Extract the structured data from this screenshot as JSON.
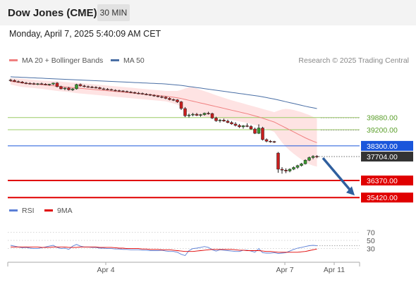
{
  "header": {
    "title": "Dow Jones (CME)",
    "timeframe": "30 MIN",
    "datetime": "Monday, April 7, 2025 5:40:09 AM CET"
  },
  "legend": {
    "ma20": "MA 20 + Bollinger Bands",
    "ma50": "MA 50",
    "rsi": "RSI",
    "ma9": "9MA"
  },
  "credit": "Research © 2025 Trading Central",
  "colors": {
    "ma20": "#f08080",
    "ma50": "#4a6fa5",
    "band": "#fddada",
    "resistance": "#9ccc65",
    "pivot": "#1a56db",
    "support": "#e00000",
    "rsi": "#5b7fd6",
    "ma9": "#e00000",
    "price_badge": "#333333"
  },
  "chart_data": [
    {
      "type": "line",
      "subtype": "candlestick",
      "x_labels": [
        "Apr 4",
        "Apr 7",
        "Apr 11"
      ],
      "y_axis_position": "right",
      "price_levels": [
        {
          "name": "resistance-2",
          "value": 39880.0,
          "label": "39880.00",
          "kind": "resistance"
        },
        {
          "name": "resistance-1",
          "value": 39200.0,
          "label": "39200.00",
          "kind": "resistance"
        },
        {
          "name": "pivot",
          "value": 38300.0,
          "label": "38300.00",
          "kind": "pivot"
        },
        {
          "name": "current",
          "value": 37704.0,
          "label": "37704.00",
          "kind": "current"
        },
        {
          "name": "support-1",
          "value": 36370.0,
          "label": "36370.00",
          "kind": "support"
        },
        {
          "name": "support-2",
          "value": 35420.0,
          "label": "35420.00",
          "kind": "support"
        }
      ],
      "ylim": [
        35350,
        42500
      ],
      "candles": [
        [
          41970,
          42040,
          41880,
          41950
        ],
        [
          41950,
          42000,
          41860,
          41880
        ],
        [
          41880,
          41940,
          41820,
          41860
        ],
        [
          41860,
          41910,
          41780,
          41800
        ],
        [
          41800,
          41860,
          41740,
          41780
        ],
        [
          41780,
          41840,
          41720,
          41770
        ],
        [
          41770,
          41830,
          41700,
          41750
        ],
        [
          41750,
          41800,
          41690,
          41760
        ],
        [
          41760,
          41820,
          41700,
          41740
        ],
        [
          41740,
          41790,
          41680,
          41710
        ],
        [
          41710,
          41760,
          41650,
          41740
        ],
        [
          41740,
          41820,
          41690,
          41800
        ],
        [
          41800,
          41850,
          41560,
          41600
        ],
        [
          41600,
          41650,
          41450,
          41480
        ],
        [
          41480,
          41560,
          41400,
          41520
        ],
        [
          41520,
          41580,
          41380,
          41420
        ],
        [
          41420,
          41520,
          41360,
          41480
        ],
        [
          41480,
          41760,
          41440,
          41720
        ],
        [
          41720,
          41780,
          41600,
          41640
        ],
        [
          41640,
          41700,
          41560,
          41600
        ],
        [
          41600,
          41660,
          41540,
          41580
        ],
        [
          41580,
          41640,
          41520,
          41560
        ],
        [
          41560,
          41620,
          41500,
          41540
        ],
        [
          41540,
          41590,
          41460,
          41480
        ],
        [
          41480,
          41540,
          41420,
          41460
        ],
        [
          41460,
          41520,
          41400,
          41440
        ],
        [
          41440,
          41490,
          41380,
          41400
        ],
        [
          41400,
          41450,
          41340,
          41380
        ],
        [
          41380,
          41430,
          41320,
          41360
        ],
        [
          41360,
          41400,
          41300,
          41330
        ],
        [
          41330,
          41380,
          41280,
          41300
        ],
        [
          41300,
          41350,
          41240,
          41280
        ],
        [
          41280,
          41320,
          41200,
          41240
        ],
        [
          41240,
          41300,
          41180,
          41220
        ],
        [
          41220,
          41270,
          41150,
          41180
        ],
        [
          41180,
          41240,
          41120,
          41160
        ],
        [
          41160,
          41200,
          41080,
          41120
        ],
        [
          41120,
          41170,
          41040,
          41080
        ],
        [
          41080,
          41130,
          41000,
          41040
        ],
        [
          41040,
          41100,
          40960,
          41020
        ],
        [
          41020,
          41060,
          40900,
          40950
        ],
        [
          40950,
          41000,
          40840,
          40880
        ],
        [
          40880,
          40940,
          40800,
          40860
        ],
        [
          40860,
          40900,
          40700,
          40750
        ],
        [
          40750,
          40800,
          40300,
          40380
        ],
        [
          40380,
          40460,
          39900,
          39980
        ],
        [
          39980,
          40100,
          39880,
          40020
        ],
        [
          40020,
          40140,
          39950,
          40060
        ],
        [
          40060,
          40140,
          39960,
          40000
        ],
        [
          40000,
          40080,
          39920,
          40040
        ],
        [
          40040,
          40160,
          39980,
          40120
        ],
        [
          40120,
          40200,
          40040,
          40100
        ],
        [
          40100,
          40150,
          39800,
          39850
        ],
        [
          39850,
          39920,
          39640,
          39700
        ],
        [
          39700,
          39800,
          39600,
          39740
        ],
        [
          39740,
          39820,
          39640,
          39680
        ],
        [
          39680,
          39760,
          39560,
          39600
        ],
        [
          39600,
          39680,
          39480,
          39520
        ],
        [
          39520,
          39620,
          39380,
          39440
        ],
        [
          39440,
          39520,
          39300,
          39360
        ],
        [
          39360,
          39460,
          39260,
          39420
        ],
        [
          39420,
          39560,
          39340,
          39380
        ],
        [
          39380,
          39460,
          39200,
          39240
        ],
        [
          39240,
          39320,
          38960,
          39000
        ],
        [
          39000,
          39500,
          38960,
          39300
        ],
        [
          39300,
          39360,
          38600,
          38650
        ],
        [
          38650,
          38720,
          38500,
          38560
        ],
        [
          38560,
          38620,
          38480,
          38540
        ],
        [
          38540,
          38580,
          38460,
          38520
        ],
        [
          37900,
          37960,
          36800,
          37000
        ],
        [
          37000,
          37120,
          36750,
          36950
        ],
        [
          36950,
          37050,
          36780,
          36900
        ],
        [
          36900,
          37050,
          36830,
          37000
        ],
        [
          37000,
          37150,
          36950,
          37100
        ],
        [
          37100,
          37250,
          37020,
          37200
        ],
        [
          37200,
          37350,
          37150,
          37300
        ],
        [
          37300,
          37550,
          37260,
          37500
        ],
        [
          37500,
          37700,
          37450,
          37650
        ],
        [
          37650,
          37780,
          37560,
          37720
        ],
        [
          37720,
          37780,
          37620,
          37704
        ]
      ],
      "ma20": [
        41900,
        41870,
        41840,
        41810,
        41790,
        41770,
        41750,
        41730,
        41710,
        41690,
        41670,
        41650,
        41630,
        41610,
        41590,
        41570,
        41550,
        41530,
        41510,
        41490,
        41470,
        41450,
        41430,
        41410,
        41390,
        41370,
        41350,
        41330,
        41310,
        41290,
        41270,
        41250,
        41230,
        41210,
        41190,
        41170,
        41150,
        41130,
        41110,
        41090,
        41070,
        41040,
        41010,
        40980,
        40940,
        40890,
        40840,
        40790,
        40740,
        40690,
        40640,
        40590,
        40540,
        40490,
        40440,
        40390,
        40340,
        40290,
        40240,
        40190,
        40140,
        40090,
        40030,
        39970,
        39910,
        39840,
        39770,
        39700,
        39630,
        39520,
        39410,
        39300,
        39190,
        39080,
        38970,
        38860,
        38750,
        38650,
        38560,
        38480
      ],
      "bb_upper": [
        42080,
        42070,
        42060,
        42040,
        42020,
        42000,
        41980,
        41960,
        41940,
        41930,
        41920,
        41910,
        41900,
        41880,
        41860,
        41840,
        41830,
        41820,
        41800,
        41780,
        41760,
        41740,
        41720,
        41700,
        41680,
        41660,
        41640,
        41620,
        41600,
        41580,
        41560,
        41540,
        41520,
        41500,
        41480,
        41460,
        41440,
        41420,
        41400,
        41380,
        41360,
        41360,
        41360,
        41360,
        41420,
        41500,
        41560,
        41560,
        41500,
        41420,
        41350,
        41280,
        41200,
        41120,
        41050,
        40980,
        40910,
        40840,
        40780,
        40720,
        40660,
        40600,
        40540,
        40480,
        40420,
        40360,
        40300,
        40240,
        40180,
        40260,
        40330,
        40360,
        40340,
        40300,
        40240,
        40180,
        40100,
        40020,
        39920,
        39820
      ],
      "bb_lower": [
        41720,
        41670,
        41620,
        41580,
        41560,
        41540,
        41520,
        41500,
        41480,
        41450,
        41420,
        41390,
        41360,
        41340,
        41320,
        41300,
        41270,
        41240,
        41220,
        41200,
        41180,
        41160,
        41140,
        41120,
        41100,
        41080,
        41060,
        41040,
        41020,
        41000,
        40980,
        40960,
        40940,
        40920,
        40900,
        40880,
        40860,
        40840,
        40820,
        40800,
        40780,
        40720,
        40660,
        40600,
        40460,
        40280,
        40120,
        40020,
        39980,
        39960,
        39930,
        39900,
        39880,
        39860,
        39830,
        39800,
        39770,
        39740,
        39700,
        39660,
        39620,
        39580,
        39520,
        39460,
        39400,
        39320,
        39240,
        39160,
        39080,
        38780,
        38490,
        38240,
        38040,
        37860,
        37700,
        37540,
        37400,
        37280,
        37200,
        37140
      ],
      "ma50": [
        42150,
        42140,
        42130,
        42120,
        42110,
        42100,
        42090,
        42080,
        42070,
        42060,
        42050,
        42040,
        42030,
        42020,
        42010,
        42000,
        41990,
        41980,
        41970,
        41960,
        41950,
        41940,
        41930,
        41920,
        41910,
        41900,
        41890,
        41880,
        41870,
        41860,
        41850,
        41840,
        41830,
        41820,
        41810,
        41800,
        41790,
        41780,
        41770,
        41760,
        41750,
        41730,
        41710,
        41690,
        41670,
        41640,
        41610,
        41580,
        41550,
        41520,
        41490,
        41460,
        41430,
        41400,
        41370,
        41340,
        41310,
        41280,
        41250,
        41220,
        41190,
        41160,
        41130,
        41100,
        41070,
        41030,
        40990,
        40950,
        40910,
        40860,
        40810,
        40760,
        40710,
        40660,
        40610,
        40560,
        40510,
        40460,
        40420,
        40380
      ]
    },
    {
      "type": "line",
      "name": "rsi-panel",
      "y_ticks": [
        70,
        50,
        30
      ],
      "ylim": [
        0,
        100
      ],
      "series": [
        {
          "name": "RSI",
          "values": [
            38,
            36,
            34,
            32,
            33,
            31,
            30,
            30,
            32,
            34,
            36,
            38,
            33,
            30,
            31,
            28,
            36,
            40,
            36,
            34,
            34,
            33,
            33,
            31,
            31,
            30,
            30,
            29,
            29,
            28,
            28,
            27,
            27,
            27,
            26,
            26,
            25,
            25,
            25,
            26,
            24,
            23,
            23,
            21,
            16,
            13,
            25,
            30,
            31,
            33,
            35,
            33,
            27,
            24,
            27,
            26,
            25,
            24,
            23,
            23,
            26,
            26,
            24,
            21,
            30,
            20,
            19,
            19,
            20,
            18,
            19,
            20,
            24,
            28,
            31,
            33,
            35,
            37,
            38,
            37
          ]
        },
        {
          "name": "9MA",
          "values": [
            34,
            34,
            34,
            34,
            34,
            34,
            34,
            34,
            33,
            33,
            33,
            34,
            34,
            34,
            34,
            33,
            33,
            33,
            34,
            34,
            34,
            34,
            34,
            33,
            33,
            33,
            33,
            32,
            31,
            31,
            30,
            30,
            30,
            30,
            29,
            29,
            28,
            28,
            28,
            27,
            27,
            27,
            26,
            25,
            24,
            23,
            23,
            23,
            24,
            25,
            26,
            27,
            28,
            28,
            28,
            28,
            28,
            28,
            27,
            26,
            26,
            25,
            25,
            25,
            25,
            24,
            23,
            23,
            22,
            21,
            21,
            21,
            21,
            21,
            21,
            22,
            23,
            25,
            27,
            29
          ]
        }
      ]
    }
  ]
}
